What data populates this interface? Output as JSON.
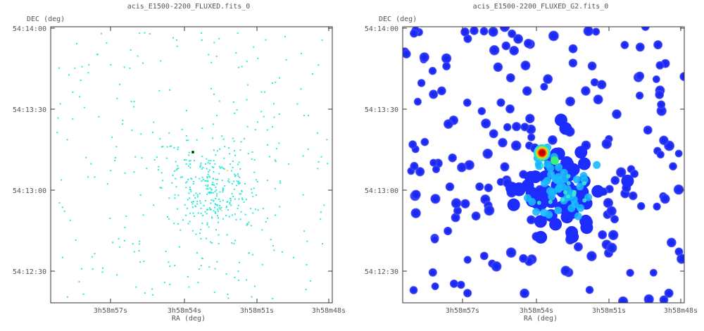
{
  "left": {
    "title": "acis_E1500-2200_FLUXED.fits_0",
    "y_label": "DEC (deg)",
    "x_label": "RA (deg)",
    "dec_ticks": [
      "54:14:00",
      "54:13:30",
      "54:13:00",
      "54:12:30"
    ],
    "ra_ticks": [
      "3h58m57s",
      "3h58m54s",
      "3h58m51s",
      "3h58m48s"
    ]
  },
  "right": {
    "title": "acis_E1500-2200_FLUXED_G2.fits_0",
    "y_label": "DEC (deg)",
    "x_label": "RA (deg)",
    "dec_ticks": [
      "54:14:00",
      "54:13:30",
      "54:13:00",
      "54:12:30"
    ],
    "ra_ticks": [
      "3h58m57s",
      "3h58m54s",
      "3h58m51s",
      "3h58m48s"
    ]
  },
  "colors": {
    "event_pixel": "#2fe8d6",
    "blob_outer": "#1f2cff",
    "blob_inner": "#16c6ff",
    "hot_core": "#c80000",
    "axis": "#333333"
  }
}
